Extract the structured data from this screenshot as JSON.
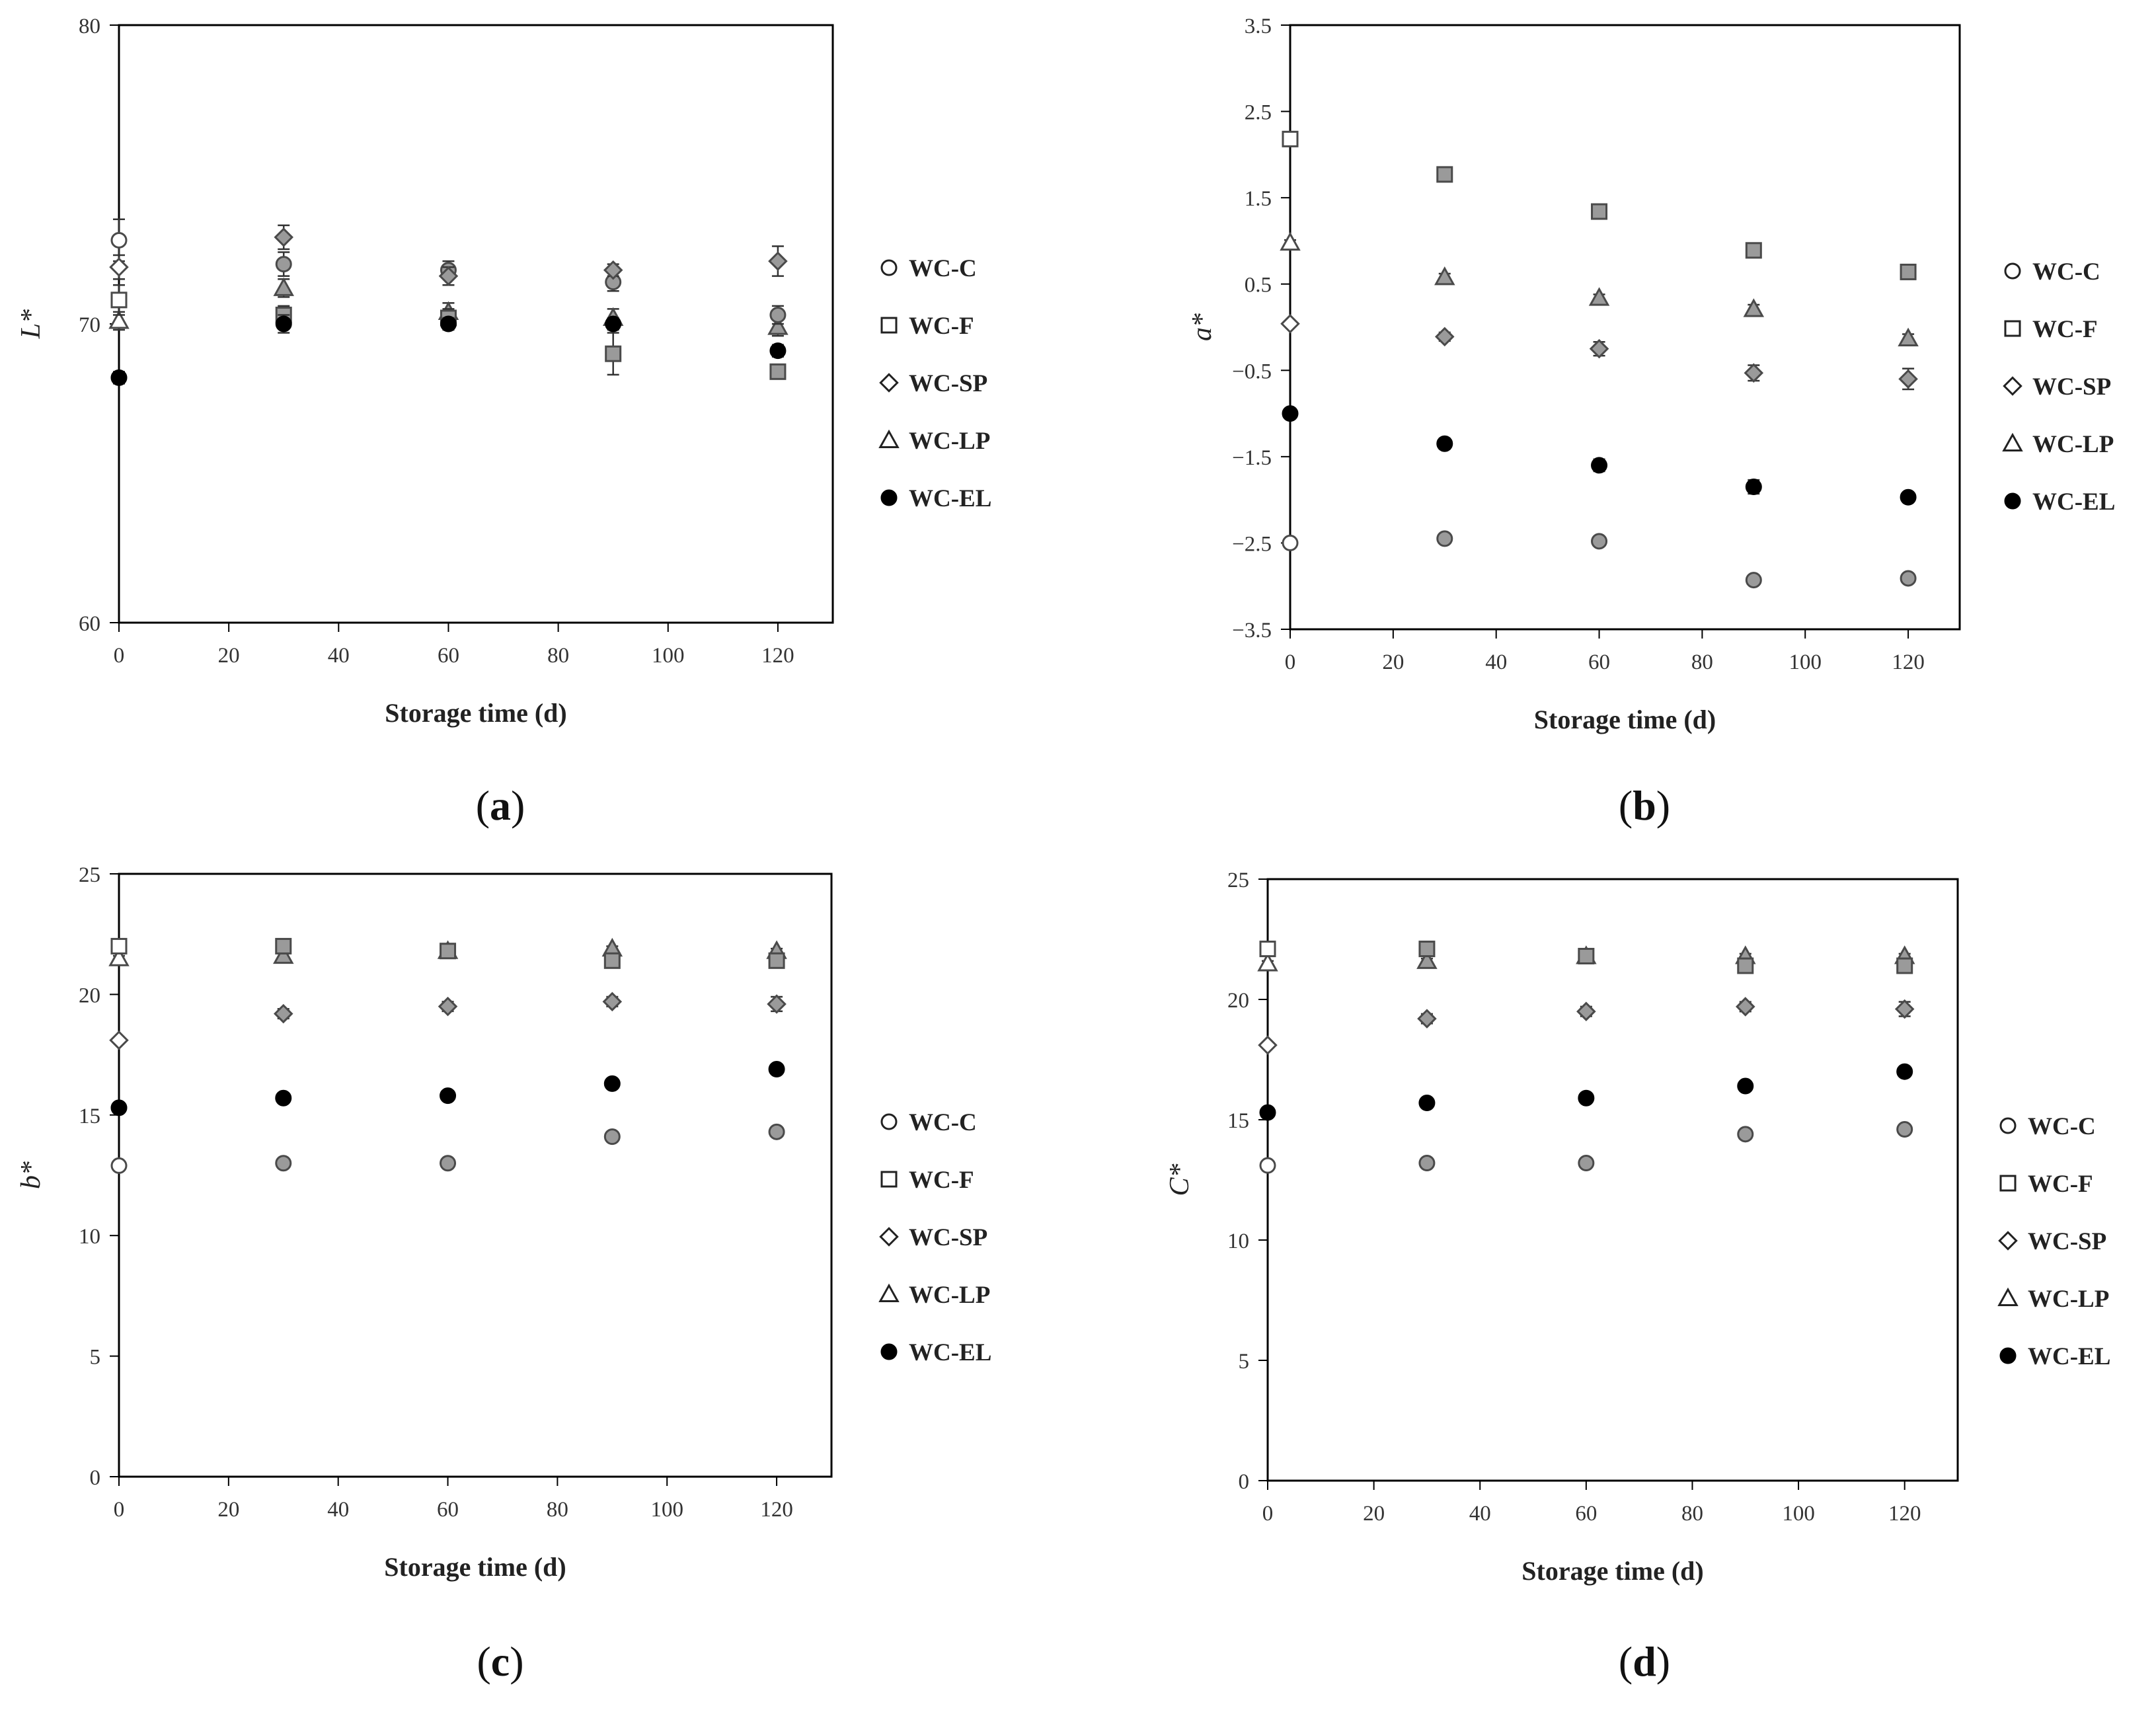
{
  "legend": [
    "WC-C",
    "WC-F",
    "WC-SP",
    "WC-LP",
    "WC-EL"
  ],
  "markers": {
    "WC-C": "circle",
    "WC-F": "square",
    "WC-SP": "diamond",
    "WC-LP": "triangle",
    "WC-EL": "filled-circle"
  },
  "colors": {
    "axis": "#000000",
    "marker_edge": "#4a4a4a",
    "marker_fill": "#9a9a9a",
    "filled_marker": "#000000"
  },
  "chart_data": [
    {
      "type": "scatter",
      "panel": "(a)",
      "caption_letter": "a",
      "xlabel": "Storage time (d)",
      "ylabel": "L*",
      "xlim": [
        0,
        130
      ],
      "ylim": [
        60,
        80
      ],
      "xticks": [
        0,
        20,
        40,
        60,
        80,
        100,
        120
      ],
      "yticks": [
        60,
        70,
        80
      ],
      "ytick_labels": [
        "60",
        "70",
        "80"
      ],
      "x": [
        0,
        30,
        60,
        90,
        120
      ],
      "series": [
        {
          "name": "WC-C",
          "values": [
            72.8,
            72.0,
            71.8,
            71.4,
            70.3
          ],
          "errors": [
            0.7,
            0.4,
            0.3,
            0.3,
            0.3
          ]
        },
        {
          "name": "WC-F",
          "values": [
            70.8,
            70.3,
            70.2,
            69.0,
            68.4
          ],
          "errors": [
            0.5,
            0.3,
            0.3,
            0.7,
            0.2
          ]
        },
        {
          "name": "WC-SP",
          "values": [
            71.9,
            72.9,
            71.6,
            71.8,
            72.1
          ],
          "errors": [
            0.4,
            0.4,
            0.3,
            0.2,
            0.5
          ]
        },
        {
          "name": "WC-LP",
          "values": [
            70.1,
            71.2,
            70.4,
            70.2,
            69.9
          ],
          "errors": [
            0.3,
            0.3,
            0.3,
            0.3,
            0.3
          ]
        },
        {
          "name": "WC-EL",
          "values": [
            68.2,
            70.0,
            70.0,
            70.0,
            69.1
          ],
          "errors": [
            0.2,
            0.3,
            0.2,
            0.2,
            0.2
          ]
        }
      ]
    },
    {
      "type": "scatter",
      "panel": "(b)",
      "caption_letter": "b",
      "xlabel": "Storage time (d)",
      "ylabel": "a*",
      "xlim": [
        0,
        130
      ],
      "ylim": [
        -3.5,
        3.5
      ],
      "xticks": [
        0,
        20,
        40,
        60,
        80,
        100,
        120
      ],
      "yticks": [
        -3.5,
        -2.5,
        -1.5,
        -0.5,
        0.5,
        1.5,
        2.5,
        3.5
      ],
      "ytick_labels": [
        "−3.5",
        "−2.5",
        "−1.5",
        "−0.5",
        "0.5",
        "1.5",
        "2.5",
        "3.5"
      ],
      "x": [
        0,
        30,
        60,
        90,
        120
      ],
      "series": [
        {
          "name": "WC-C",
          "values": [
            -2.5,
            -2.45,
            -2.48,
            -2.93,
            -2.91
          ],
          "errors": [
            0.04,
            0.05,
            0.05,
            0.05,
            0.05
          ]
        },
        {
          "name": "WC-F",
          "values": [
            2.18,
            1.77,
            1.34,
            0.89,
            0.64
          ],
          "errors": [
            0.04,
            0.05,
            0.05,
            0.07,
            0.05
          ]
        },
        {
          "name": "WC-SP",
          "values": [
            0.04,
            -0.11,
            -0.25,
            -0.53,
            -0.6
          ],
          "errors": [
            0.03,
            0.05,
            0.08,
            0.09,
            0.12
          ]
        },
        {
          "name": "WC-LP",
          "values": [
            0.98,
            0.58,
            0.34,
            0.21,
            -0.13
          ],
          "errors": [
            0.03,
            0.04,
            0.04,
            0.05,
            0.05
          ]
        },
        {
          "name": "WC-EL",
          "values": [
            -1.0,
            -1.35,
            -1.6,
            -1.85,
            -1.97
          ],
          "errors": [
            0.04,
            0.06,
            0.07,
            0.08,
            0.05
          ]
        }
      ]
    },
    {
      "type": "scatter",
      "panel": "(c)",
      "caption_letter": "c",
      "xlabel": "Storage time (d)",
      "ylabel": "b*",
      "xlim": [
        0,
        130
      ],
      "ylim": [
        0,
        25
      ],
      "xticks": [
        0,
        20,
        40,
        60,
        80,
        100,
        120
      ],
      "yticks": [
        0,
        5,
        10,
        15,
        20,
        25
      ],
      "ytick_labels": [
        "0",
        "5",
        "10",
        "15",
        "20",
        "25"
      ],
      "x": [
        0,
        30,
        60,
        90,
        120
      ],
      "series": [
        {
          "name": "WC-C",
          "values": [
            12.9,
            13.0,
            13.0,
            14.1,
            14.3
          ],
          "errors": [
            0.1,
            0.2,
            0.2,
            0.2,
            0.2
          ]
        },
        {
          "name": "WC-F",
          "values": [
            22.0,
            22.0,
            21.8,
            21.4,
            21.4
          ],
          "errors": [
            0.1,
            0.1,
            0.1,
            0.3,
            0.2
          ]
        },
        {
          "name": "WC-SP",
          "values": [
            18.1,
            19.2,
            19.5,
            19.7,
            19.6
          ],
          "errors": [
            0.1,
            0.2,
            0.2,
            0.2,
            0.3
          ]
        },
        {
          "name": "WC-LP",
          "values": [
            21.5,
            21.6,
            21.8,
            21.9,
            21.8
          ],
          "errors": [
            0.1,
            0.1,
            0.1,
            0.1,
            0.1
          ]
        },
        {
          "name": "WC-EL",
          "values": [
            15.3,
            15.7,
            15.8,
            16.3,
            16.9
          ],
          "errors": [
            0.1,
            0.1,
            0.1,
            0.1,
            0.2
          ]
        }
      ]
    },
    {
      "type": "scatter",
      "panel": "(d)",
      "caption_letter": "d",
      "xlabel": "Storage time (d)",
      "ylabel": "C*",
      "xlim": [
        0,
        130
      ],
      "ylim": [
        0,
        25
      ],
      "xticks": [
        0,
        20,
        40,
        60,
        80,
        100,
        120
      ],
      "yticks": [
        0,
        5,
        10,
        15,
        20,
        25
      ],
      "ytick_labels": [
        "0",
        "5",
        "10",
        "15",
        "20",
        "25"
      ],
      "x": [
        0,
        30,
        60,
        90,
        120
      ],
      "series": [
        {
          "name": "WC-C",
          "values": [
            13.1,
            13.2,
            13.2,
            14.4,
            14.6
          ],
          "errors": [
            0.1,
            0.2,
            0.2,
            0.2,
            0.2
          ]
        },
        {
          "name": "WC-F",
          "values": [
            22.1,
            22.1,
            21.8,
            21.4,
            21.4
          ],
          "errors": [
            0.1,
            0.1,
            0.1,
            0.3,
            0.2
          ]
        },
        {
          "name": "WC-SP",
          "values": [
            18.1,
            19.2,
            19.5,
            19.7,
            19.6
          ],
          "errors": [
            0.1,
            0.2,
            0.2,
            0.2,
            0.3
          ]
        },
        {
          "name": "WC-LP",
          "values": [
            21.5,
            21.6,
            21.8,
            21.8,
            21.8
          ],
          "errors": [
            0.1,
            0.1,
            0.1,
            0.1,
            0.1
          ]
        },
        {
          "name": "WC-EL",
          "values": [
            15.3,
            15.7,
            15.9,
            16.4,
            17.0
          ],
          "errors": [
            0.1,
            0.1,
            0.1,
            0.1,
            0.2
          ]
        }
      ]
    }
  ]
}
